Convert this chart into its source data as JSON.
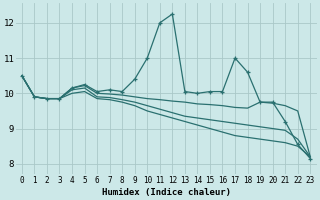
{
  "xlabel": "Humidex (Indice chaleur)",
  "bg_color": "#cce8e8",
  "grid_color": "#aac8c8",
  "line_color": "#2a7070",
  "ylim": [
    7.7,
    12.55
  ],
  "xlim": [
    -0.5,
    23.5
  ],
  "yticks": [
    8,
    9,
    10,
    11,
    12
  ],
  "xticks": [
    0,
    1,
    2,
    3,
    4,
    5,
    6,
    7,
    8,
    9,
    10,
    11,
    12,
    13,
    14,
    15,
    16,
    17,
    18,
    19,
    20,
    21,
    22,
    23
  ],
  "series": [
    {
      "x": [
        0,
        1,
        2,
        3,
        4,
        5,
        6,
        7,
        8,
        9,
        10,
        11,
        12,
        13,
        14,
        15,
        16,
        17,
        18,
        19,
        20,
        21,
        22,
        23
      ],
      "y": [
        10.5,
        9.9,
        9.85,
        9.85,
        10.15,
        10.25,
        10.05,
        10.1,
        10.05,
        10.4,
        11.0,
        12.0,
        12.25,
        10.05,
        10.0,
        10.05,
        10.05,
        11.0,
        10.6,
        9.75,
        9.75,
        9.2,
        8.55,
        8.15
      ],
      "marker": true
    },
    {
      "x": [
        0,
        1,
        2,
        3,
        4,
        5,
        6,
        7,
        8,
        9,
        10,
        11,
        12,
        13,
        14,
        15,
        16,
        17,
        18,
        19,
        20,
        21,
        22,
        23
      ],
      "y": [
        10.5,
        9.9,
        9.85,
        9.85,
        10.15,
        10.22,
        10.0,
        9.98,
        9.95,
        9.9,
        9.85,
        9.82,
        9.78,
        9.75,
        9.7,
        9.68,
        9.65,
        9.6,
        9.58,
        9.75,
        9.72,
        9.65,
        9.5,
        8.2
      ],
      "marker": false
    },
    {
      "x": [
        0,
        1,
        2,
        3,
        4,
        5,
        6,
        7,
        8,
        9,
        10,
        11,
        12,
        13,
        14,
        15,
        16,
        17,
        18,
        19,
        20,
        21,
        22,
        23
      ],
      "y": [
        10.5,
        9.9,
        9.85,
        9.85,
        10.1,
        10.15,
        9.9,
        9.88,
        9.82,
        9.75,
        9.65,
        9.55,
        9.45,
        9.35,
        9.3,
        9.25,
        9.2,
        9.15,
        9.1,
        9.05,
        9.0,
        8.95,
        8.7,
        8.2
      ],
      "marker": false
    },
    {
      "x": [
        0,
        1,
        2,
        3,
        4,
        5,
        6,
        7,
        8,
        9,
        10,
        11,
        12,
        13,
        14,
        15,
        16,
        17,
        18,
        19,
        20,
        21,
        22,
        23
      ],
      "y": [
        10.5,
        9.9,
        9.85,
        9.85,
        10.0,
        10.05,
        9.85,
        9.82,
        9.75,
        9.65,
        9.5,
        9.4,
        9.3,
        9.2,
        9.1,
        9.0,
        8.9,
        8.8,
        8.75,
        8.7,
        8.65,
        8.6,
        8.5,
        8.2
      ],
      "marker": false
    }
  ]
}
